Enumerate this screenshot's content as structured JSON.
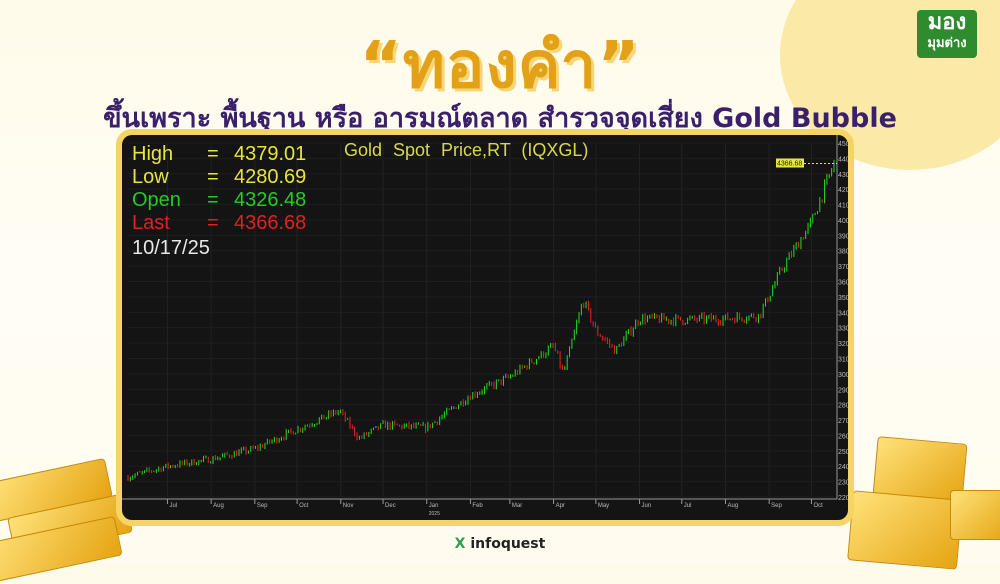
{
  "header": {
    "title": "“ทองคำ”",
    "subtitle": "ขึ้นเพราะ พื้นฐาน หรือ อารมณ์ตลาด สำรวจจุดเสี่ยง Gold Bubble"
  },
  "logo": {
    "line1": "มอง",
    "line2": "มุมต่าง",
    "color": "#2e8b2e"
  },
  "footer": {
    "brand_mark": "X",
    "brand": "infoquest"
  },
  "chart_data": {
    "type": "candlestick",
    "title": "Gold Spot Price,RT (IQXGL)",
    "stats": [
      {
        "label": "High",
        "value": "4379.01",
        "color": "#e6e63a"
      },
      {
        "label": "Low",
        "value": "4280.69",
        "color": "#e6e63a"
      },
      {
        "label": "Open",
        "value": "4326.48",
        "color": "#22cc22"
      },
      {
        "label": "Last",
        "value": "4366.68",
        "color": "#dd2222"
      }
    ],
    "date": "10/17/25",
    "last_marker": "4366.68",
    "ylim": [
      2200,
      4500
    ],
    "yticks": [
      "4500.00",
      "4400.00",
      "4300.00",
      "4200.00",
      "4100.00",
      "4000.00",
      "3900.00",
      "3800.00",
      "3700.00",
      "3600.00",
      "3500.00",
      "3400.00",
      "3300.00",
      "3200.00",
      "3100.00",
      "3000.00",
      "2900.00",
      "2800.00",
      "2700.00",
      "2600.00",
      "2500.00",
      "2400.00",
      "2300.00",
      "2200.00"
    ],
    "xticks": [
      "Jul",
      "Aug",
      "Sep",
      "Oct",
      "Nov",
      "Dec",
      "Jan",
      "Feb",
      "Mar",
      "Apr",
      "May",
      "Jun",
      "Jul",
      "Aug",
      "Sep",
      "Oct"
    ],
    "xtick_year": "2025",
    "series": {
      "dates": [
        "2024-06-03",
        "2024-07-01",
        "2024-08-01",
        "2024-09-01",
        "2024-10-01",
        "2024-10-31",
        "2024-11-14",
        "2024-12-01",
        "2025-01-01",
        "2025-02-01",
        "2025-03-01",
        "2025-04-01",
        "2025-04-08",
        "2025-04-22",
        "2025-05-01",
        "2025-05-15",
        "2025-06-01",
        "2025-07-01",
        "2025-08-01",
        "2025-08-25",
        "2025-09-10",
        "2025-10-01",
        "2025-10-17"
      ],
      "close": [
        2330,
        2400,
        2446,
        2513,
        2640,
        2760,
        2580,
        2667,
        2650,
        2860,
        2980,
        3180,
        3000,
        3480,
        3280,
        3150,
        3360,
        3350,
        3360,
        3380,
        3680,
        3985,
        4366
      ]
    },
    "up_color": "#22dd22",
    "down_color": "#ee2222",
    "grid": true
  }
}
